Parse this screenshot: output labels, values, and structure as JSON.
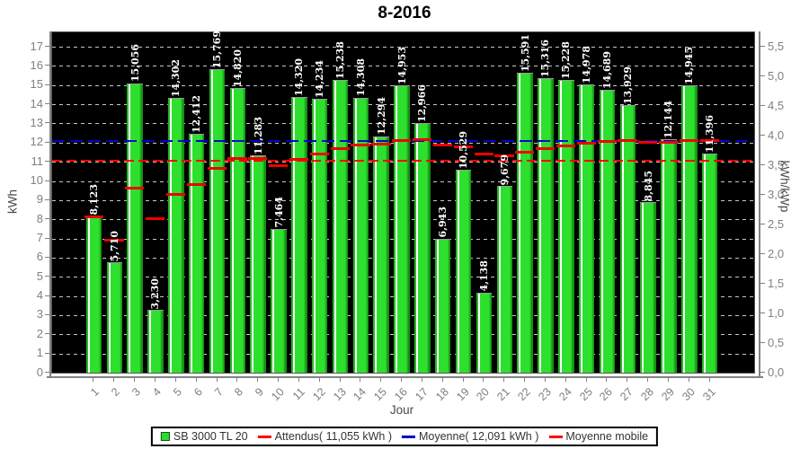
{
  "title": "8-2016",
  "y_axis_left": {
    "title": "kWh",
    "ticks": [
      0,
      1,
      2,
      3,
      4,
      5,
      6,
      7,
      8,
      9,
      10,
      11,
      12,
      13,
      14,
      15,
      16,
      17
    ]
  },
  "y_axis_right": {
    "title": "kWh/kWp",
    "ticks": [
      "0,0",
      "0,5",
      "1,0",
      "1,5",
      "2,0",
      "2,5",
      "3,0",
      "3,5",
      "4,0",
      "4,5",
      "5,0",
      "5,5"
    ]
  },
  "x_axis": {
    "title": "Jour",
    "ticks": [
      "1",
      "2",
      "3",
      "4",
      "5",
      "6",
      "7",
      "8",
      "9",
      "10",
      "11",
      "12",
      "13",
      "14",
      "15",
      "16",
      "17",
      "18",
      "19",
      "20",
      "21",
      "22",
      "23",
      "24",
      "25",
      "26",
      "27",
      "28",
      "29",
      "30",
      "31"
    ]
  },
  "legend": {
    "items": [
      {
        "label": "SB 3000 TL 20",
        "swatch": "square",
        "color": "#2bdd2b"
      },
      {
        "label": "Attendus( 11,055 kWh )",
        "swatch": "line",
        "color": "#ff0000"
      },
      {
        "label": "Moyenne( 12,091 kWh )",
        "swatch": "line",
        "color": "#0000cc"
      },
      {
        "label": "Moyenne mobile",
        "swatch": "line",
        "color": "#ff0000"
      }
    ]
  },
  "chart_data": {
    "type": "bar",
    "title": "8-2016",
    "xlabel": "Jour",
    "ylabel_left": "kWh",
    "ylabel_right": "kWh/kWp",
    "ylim_left": [
      0,
      17.75
    ],
    "right_axis_max": 5.5,
    "grid": "horizontal-dashed-white-on-black",
    "legend_position": "bottom",
    "plot_background": "#000000",
    "categories": [
      1,
      2,
      3,
      4,
      5,
      6,
      7,
      8,
      9,
      10,
      11,
      12,
      13,
      14,
      15,
      16,
      17,
      18,
      19,
      20,
      21,
      22,
      23,
      24,
      25,
      26,
      27,
      28,
      29,
      30,
      31
    ],
    "bar_series": {
      "name": "SB 3000 TL 20",
      "color": "#2bdd2b",
      "values_kwh": [
        8.123,
        5.71,
        15.056,
        3.23,
        14.302,
        12.412,
        15.769,
        14.82,
        11.283,
        7.464,
        14.32,
        14.234,
        15.238,
        14.308,
        12.294,
        14.953,
        12.966,
        6.943,
        10.529,
        4.138,
        9.679,
        15.591,
        15.316,
        15.228,
        14.978,
        14.689,
        13.929,
        8.845,
        12.144,
        14.945,
        11.396
      ],
      "bar_labels": [
        "8,123",
        "5,710",
        "15,056",
        "3,230",
        "14,302",
        "12,412",
        "15,769",
        "14,820",
        "11,283",
        "7,464",
        "14,320",
        "14,234",
        "15,238",
        "14,308",
        "12,294",
        "14,953",
        "12,966",
        "6,943",
        "10,529",
        "4,138",
        "9,679",
        "15,591",
        "15,316",
        "15,228",
        "14,978",
        "14,689",
        "13,929",
        "8,845",
        "12,144",
        "14,945",
        "11,396"
      ]
    },
    "reference_lines": [
      {
        "name": "Attendus",
        "value_kwh": 11.055,
        "color": "#ff0000",
        "style": "dashed",
        "thickness": 1.5
      },
      {
        "name": "Moyenne",
        "value_kwh": 12.091,
        "color": "#0000cc",
        "style": "dashed",
        "thickness": 2
      }
    ],
    "moving_average": {
      "name": "Moyenne mobile",
      "color": "#ee0000",
      "values_kwh": [
        8.123,
        6.917,
        9.63,
        8.03,
        9.284,
        9.806,
        10.657,
        11.178,
        11.189,
        10.817,
        11.135,
        11.394,
        11.689,
        11.876,
        11.904,
        12.095,
        12.146,
        11.857,
        11.787,
        11.405,
        11.322,
        11.517,
        11.682,
        11.829,
        11.955,
        12.06,
        12.13,
        12.012,
        12.017,
        12.115,
        12.091
      ]
    }
  }
}
